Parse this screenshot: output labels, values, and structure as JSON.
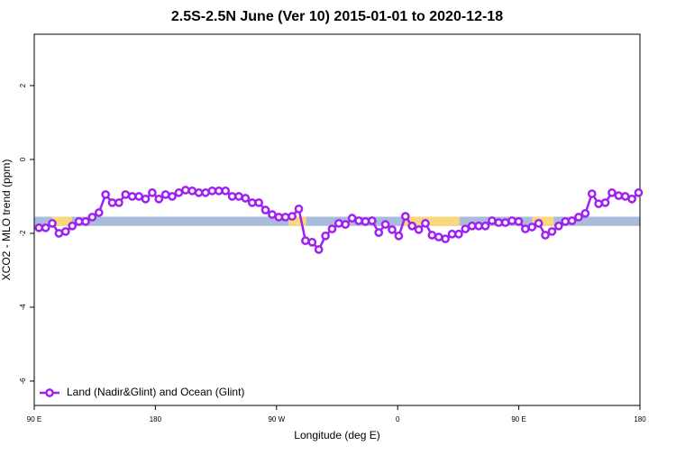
{
  "chart_data": {
    "type": "line",
    "title": "2.5S-2.5N June (Ver 10)   2015-01-01 to 2020-12-18",
    "x_label": "Longitude (deg E)",
    "y_label": "XCO2 - MLO trend (ppm)",
    "xlim": [
      90,
      540
    ],
    "ylim": [
      -6.66,
      3.39
    ],
    "xticks": [
      {
        "value": 90,
        "label": "90 E"
      },
      180,
      {
        "value": 270,
        "label": "90 W"
      },
      {
        "value": 360,
        "label": "0"
      },
      {
        "value": 450,
        "label": "90 E"
      },
      {
        "value": 540,
        "label": "180"
      }
    ],
    "yticks": [
      2,
      0,
      -2,
      -4,
      -6
    ],
    "band": {
      "ylim": [
        -1.8,
        -1.55
      ],
      "color": "#a9bcdb",
      "land_color": "#f7d87c",
      "land_ranges": [
        [
          103,
          118
        ],
        [
          279,
          292
        ],
        [
          364,
          406
        ],
        [
          460,
          476
        ]
      ]
    },
    "legend": "bottom-left",
    "x": [
      93.5,
      98.45,
      103.4,
      108.35,
      113.3,
      118.25,
      123.2,
      128.15,
      133.1,
      138.05,
      143,
      147.95,
      152.9,
      157.85,
      162.8,
      167.75,
      172.7,
      177.65,
      182.6,
      187.55,
      192.5,
      197.45,
      202.4,
      207.35,
      212.3,
      217.25,
      222.2,
      227.15,
      232.1,
      237.05,
      242,
      246.95,
      251.9,
      256.85,
      261.8,
      266.75,
      271.7,
      276.65,
      281.6,
      286.55,
      291.5,
      296.45,
      301.4,
      306.35,
      311.3,
      316.25,
      321.2,
      326.15,
      331.1,
      336.05,
      341,
      345.95,
      350.9,
      355.85,
      360.8,
      365.75,
      370.7,
      375.65,
      380.6,
      385.55,
      390.5,
      395.45,
      400.4,
      405.35,
      410.3,
      415.25,
      420.2,
      425.15,
      430.1,
      435.05,
      440,
      444.95,
      449.9,
      454.85,
      459.8,
      464.75,
      469.7,
      474.65,
      479.6,
      484.55,
      489.5,
      494.45,
      499.4,
      504.35,
      509.3,
      514.25,
      519.2,
      524.15,
      529.1,
      534.05,
      539
    ],
    "series": [
      {
        "name": "Land (Nadir&Glint) and Ocean (Glint)",
        "color": "#a020f0",
        "values": [
          -1.85,
          -1.85,
          -1.73,
          -2.0,
          -1.95,
          -1.8,
          -1.68,
          -1.68,
          -1.56,
          -1.44,
          -0.95,
          -1.17,
          -1.17,
          -0.95,
          -1.0,
          -1.0,
          -1.07,
          -0.9,
          -1.07,
          -0.95,
          -1.0,
          -0.9,
          -0.83,
          -0.85,
          -0.9,
          -0.9,
          -0.85,
          -0.85,
          -0.85,
          -1.0,
          -1.0,
          -1.05,
          -1.17,
          -1.17,
          -1.37,
          -1.49,
          -1.56,
          -1.56,
          -1.54,
          -1.34,
          -2.2,
          -2.24,
          -2.44,
          -2.07,
          -1.88,
          -1.73,
          -1.76,
          -1.59,
          -1.66,
          -1.68,
          -1.66,
          -1.98,
          -1.76,
          -1.9,
          -2.07,
          -1.54,
          -1.8,
          -1.9,
          -1.73,
          -2.05,
          -2.1,
          -2.15,
          -2.02,
          -2.02,
          -1.88,
          -1.8,
          -1.8,
          -1.8,
          -1.66,
          -1.71,
          -1.71,
          -1.66,
          -1.68,
          -1.88,
          -1.83,
          -1.73,
          -2.05,
          -1.95,
          -1.8,
          -1.68,
          -1.66,
          -1.56,
          -1.46,
          -0.93,
          -1.2,
          -1.17,
          -0.9,
          -0.98,
          -1.0,
          -1.07,
          -0.9
        ]
      }
    ]
  }
}
